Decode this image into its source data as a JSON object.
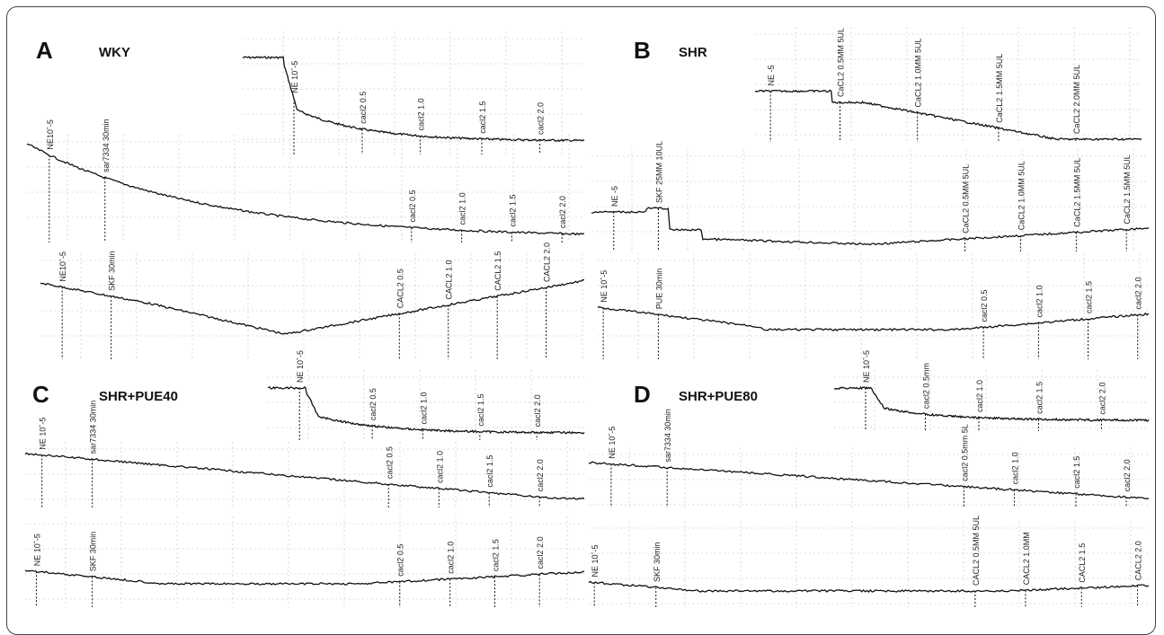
{
  "chart_data": {
    "type": "line",
    "panels": [
      {
        "letter": "A",
        "group": "WKY",
        "traces": [
          {
            "markers": [
              "NE 10^-5",
              "cacl2  0.5",
              "cacl2  1.0",
              "cacl2  1.5",
              "cacl2  2.0"
            ]
          },
          {
            "markers": [
              "NE10^-5",
              "sar7334   30min",
              "cacl2  0.5",
              "cacl2  1.0",
              "cacl2  1.5",
              "cacl2  2.0"
            ]
          },
          {
            "markers": [
              "NE10^-5",
              "SKF  30min",
              "CACL2  0.5",
              "CACL2  1.0",
              "CACL2  1.5",
              "CACL2  2.0"
            ]
          }
        ]
      },
      {
        "letter": "B",
        "group": "SHR",
        "traces": [
          {
            "markers": [
              "NE -5",
              "CaCL2  0.5MM   5UL",
              "CaCL2  1.0MM   5UL",
              "CaCL2  1.5MM   5UL",
              "CaCL2  2.0MM   5UL"
            ]
          },
          {
            "markers": [
              "NE -5",
              "SKF  25MM   10UL",
              "CaCL2  0.5MM   5UL",
              "CaCL2  1.0MM   5UL",
              "CaCL2  1.5MM   5UL",
              "CaCL2  1.5MM   5UL"
            ]
          },
          {
            "markers": [
              "NE 10^-5",
              "PUE   30min",
              "cacl2  0.5",
              "cacl2  1.0",
              "cacl2  1.5",
              "cacl2  2.0"
            ]
          }
        ]
      },
      {
        "letter": "C",
        "group": "SHR+PUE40",
        "traces": [
          {
            "markers": [
              "NE 10^-5",
              "cacl2  0.5",
              "cacl2  1.0",
              "cacl2  1.5",
              "cacl2  2.0"
            ]
          },
          {
            "markers": [
              "NE 10^-5",
              "sar7334   30min",
              "cacl2  0.5",
              "cacl2  1.0",
              "cacl2  1.5",
              "cacl2  2.0"
            ]
          },
          {
            "markers": [
              "NE 10^-5",
              "SKF  30min",
              "cacl2  0.5",
              "cacl2  1.0",
              "cacl2  1.5",
              "cacl2  2.0"
            ]
          }
        ]
      },
      {
        "letter": "D",
        "group": "SHR+PUE80",
        "traces": [
          {
            "markers": [
              "NE 10^-5",
              "cacl2  0.5mm",
              "cacl2  1.0",
              "cacl2  1.5",
              "cacl2  2.0"
            ]
          },
          {
            "markers": [
              "NE 10^-5",
              "sar7334   30min",
              "cacl2  0.5mm   5L",
              "cacl2  1.0",
              "cacl2  1.5",
              "cacl2  2.0"
            ]
          },
          {
            "markers": [
              "NE 10^-5",
              "SKF   30min",
              "CACL2  0.5MM   5UL",
              "CACL2  1.0MM",
              "CACL2  1.5",
              "CACL2  2.0"
            ]
          }
        ]
      }
    ]
  }
}
